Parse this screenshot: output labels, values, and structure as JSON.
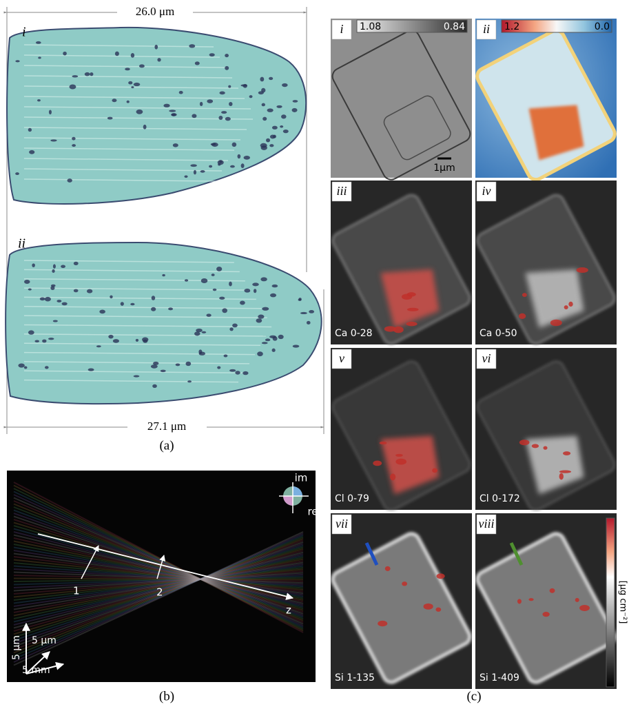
{
  "panel_a": {
    "dimension_top": "26.0 μm",
    "dimension_bottom": "27.1 μm",
    "sub_labels": [
      "i",
      "ii"
    ],
    "caption": "(a)"
  },
  "panel_b": {
    "phase_axes": [
      "im",
      "re"
    ],
    "markers": [
      "1",
      "2"
    ],
    "axis_label": "z",
    "scale_bars": [
      "5 μm",
      "5 μm",
      "5 mm"
    ],
    "caption": "(b)"
  },
  "panel_c": {
    "tiles": [
      {
        "label": "i",
        "colorbar": [
          "1.08",
          "0.84"
        ],
        "scale_bar": "1μm"
      },
      {
        "label": "ii",
        "colorbar": [
          "1.2",
          "0.0"
        ]
      },
      {
        "label": "iii",
        "element": "Ca 0-28"
      },
      {
        "label": "iv",
        "element": "Ca 0-50"
      },
      {
        "label": "v",
        "element": "Cl 0-79"
      },
      {
        "label": "vi",
        "element": "Cl 0-172"
      },
      {
        "label": "vii",
        "element": "Si 1-135"
      },
      {
        "label": "viii",
        "element": "Si 1-409"
      }
    ],
    "colorbar_unit": "[μg cm⁻²]",
    "caption": "(c)"
  }
}
